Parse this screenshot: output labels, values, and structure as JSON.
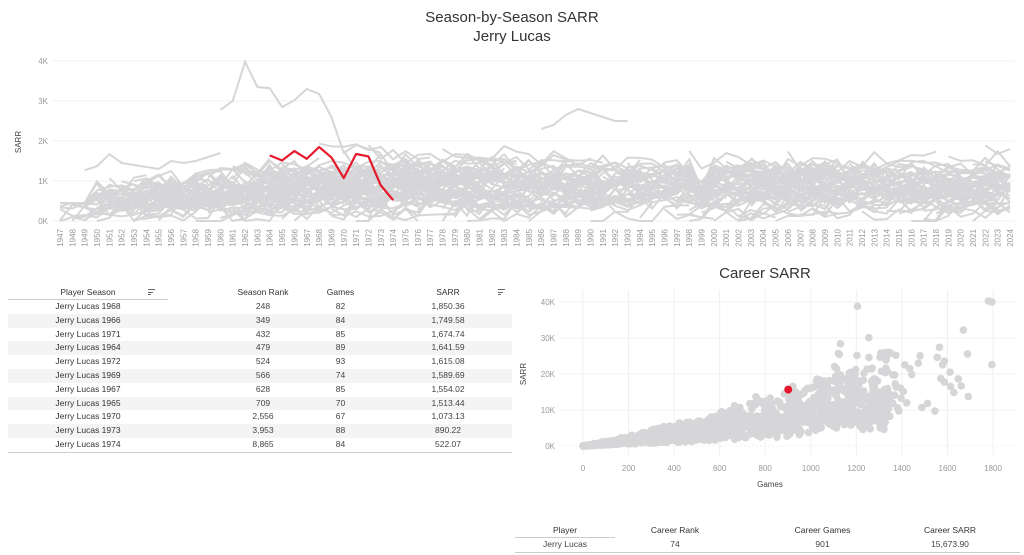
{
  "line_title": "Season-by-Season SARR",
  "line_subtitle": "Jerry Lucas",
  "scatter_title": "Career SARR",
  "colors": {
    "highlight": "#e41a2c",
    "background_series": "#d6d6d8",
    "grid": "#f0f0f0",
    "row_band": "#f4f4f4"
  },
  "chart_data": [
    {
      "type": "line",
      "title": "Season-by-Season SARR",
      "subtitle": "Jerry Lucas",
      "xlabel": "",
      "ylabel": "SARR",
      "ylim": [
        0,
        4000
      ],
      "yticks": [
        "0K",
        "1K",
        "2K",
        "3K",
        "4K"
      ],
      "x": [
        1947,
        1948,
        1949,
        1950,
        1951,
        1952,
        1953,
        1954,
        1955,
        1956,
        1957,
        1958,
        1959,
        1960,
        1961,
        1962,
        1963,
        1964,
        1965,
        1966,
        1967,
        1968,
        1969,
        1970,
        1971,
        1972,
        1973,
        1974,
        1975,
        1976,
        1977,
        1978,
        1979,
        1980,
        1981,
        1982,
        1983,
        1984,
        1985,
        1986,
        1987,
        1988,
        1989,
        1990,
        1991,
        1992,
        1993,
        1994,
        1995,
        1996,
        1997,
        1998,
        1999,
        2000,
        2001,
        2002,
        2003,
        2004,
        2005,
        2006,
        2007,
        2008,
        2009,
        2010,
        2011,
        2012,
        2013,
        2014,
        2015,
        2016,
        2017,
        2018,
        2019,
        2020,
        2021,
        2022,
        2023,
        2024
      ],
      "highlight_series": {
        "name": "Jerry Lucas",
        "x": [
          1964,
          1965,
          1966,
          1967,
          1968,
          1969,
          1970,
          1971,
          1972,
          1973,
          1974
        ],
        "values": [
          1641.59,
          1513.44,
          1749.58,
          1554.02,
          1850.36,
          1589.69,
          1073.13,
          1674.74,
          1615.08,
          890.22,
          522.07
        ]
      },
      "background_series_note": "all other players (gray)",
      "notable_background_series": [
        {
          "x": [
            1960,
            1961,
            1962,
            1963,
            1964,
            1965,
            1966,
            1967,
            1968,
            1969,
            1970,
            1971,
            1972,
            1973
          ],
          "values": [
            2780,
            3000,
            3980,
            3350,
            3320,
            2850,
            3020,
            3300,
            3180,
            2600,
            1700,
            1900,
            1800,
            1700
          ]
        },
        {
          "x": [
            1949,
            1950,
            1951,
            1952,
            1953,
            1954,
            1955,
            1956,
            1957,
            1958,
            1959,
            1960
          ],
          "values": [
            1270,
            1370,
            1670,
            1450,
            1400,
            1350,
            1300,
            1500,
            1450,
            1500,
            1600,
            1700
          ]
        },
        {
          "x": [
            1986,
            1987,
            1988,
            1989,
            1990,
            1991,
            1992,
            1993
          ],
          "values": [
            2300,
            2400,
            2650,
            2800,
            2700,
            2600,
            2500,
            2500
          ]
        }
      ]
    },
    {
      "type": "scatter",
      "title": "Career SARR",
      "xlabel": "Games",
      "ylabel": "SARR",
      "xlim": [
        0,
        1800
      ],
      "ylim": [
        0,
        40000
      ],
      "xticks": [
        "0",
        "200",
        "400",
        "600",
        "800",
        "1000",
        "1200",
        "1400",
        "1600",
        "1800"
      ],
      "yticks": [
        "0K",
        "10K",
        "20K",
        "30K",
        "40K"
      ],
      "highlight_point": {
        "name": "Jerry Lucas",
        "x": 901,
        "y": 15673.9
      },
      "notable_background_points": [
        {
          "x": 1205,
          "y": 38800
        },
        {
          "x": 1780,
          "y": 40300
        },
        {
          "x": 1795,
          "y": 40000
        },
        {
          "x": 1795,
          "y": 22600
        },
        {
          "x": 1670,
          "y": 32200
        },
        {
          "x": 1255,
          "y": 30100
        },
        {
          "x": 1130,
          "y": 28400
        },
        {
          "x": 1565,
          "y": 27400
        },
        {
          "x": 1545,
          "y": 9700
        }
      ]
    }
  ],
  "season_table": {
    "headers": [
      "Player Season",
      "Season Rank",
      "Games",
      "SARR"
    ],
    "rows": [
      [
        "Jerry Lucas 1968",
        "248",
        "82",
        "1,850.36"
      ],
      [
        "Jerry Lucas 1966",
        "349",
        "84",
        "1,749.58"
      ],
      [
        "Jerry Lucas 1971",
        "432",
        "85",
        "1,674.74"
      ],
      [
        "Jerry Lucas 1964",
        "479",
        "89",
        "1,641.59"
      ],
      [
        "Jerry Lucas 1972",
        "524",
        "93",
        "1,615.08"
      ],
      [
        "Jerry Lucas 1969",
        "566",
        "74",
        "1,589.69"
      ],
      [
        "Jerry Lucas 1967",
        "628",
        "85",
        "1,554.02"
      ],
      [
        "Jerry Lucas 1965",
        "709",
        "70",
        "1,513.44"
      ],
      [
        "Jerry Lucas 1970",
        "2,556",
        "67",
        "1,073.13"
      ],
      [
        "Jerry Lucas 1973",
        "3,953",
        "88",
        "890.22"
      ],
      [
        "Jerry Lucas 1974",
        "8,865",
        "84",
        "522.07"
      ]
    ]
  },
  "career_table": {
    "headers": [
      "Player",
      "Career Rank",
      "Career Games",
      "Career SARR"
    ],
    "rows": [
      [
        "Jerry Lucas",
        "74",
        "901",
        "15,673.90"
      ]
    ]
  }
}
